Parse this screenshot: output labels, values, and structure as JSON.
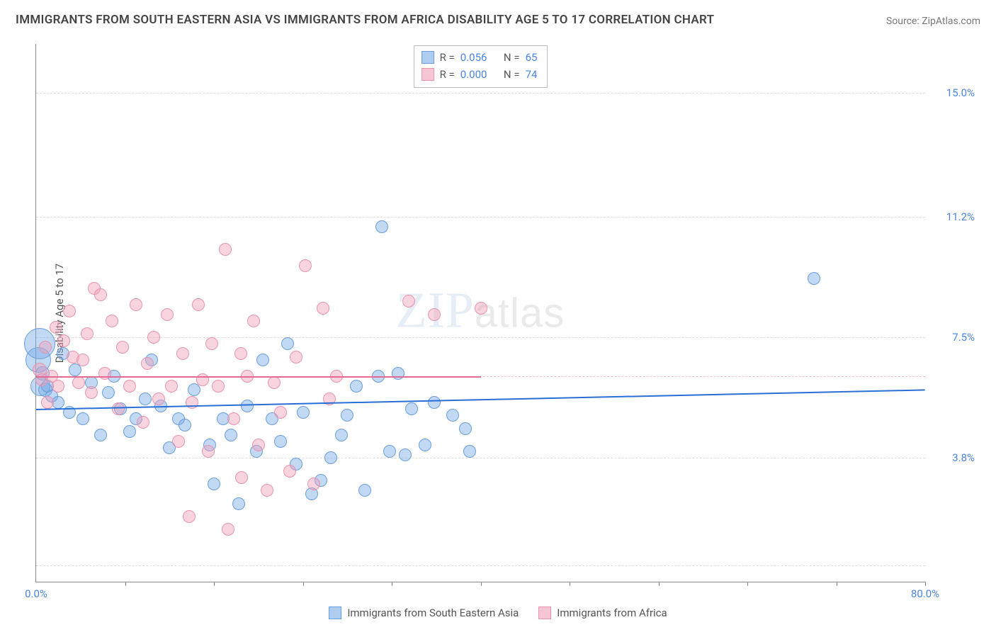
{
  "title": "IMMIGRANTS FROM SOUTH EASTERN ASIA VS IMMIGRANTS FROM AFRICA DISABILITY AGE 5 TO 17 CORRELATION CHART",
  "source": "Source: ZipAtlas.com",
  "ylabel": "Disability Age 5 to 17",
  "watermark": {
    "zip": "ZIP",
    "atlas": "atlas"
  },
  "chart": {
    "type": "scatter",
    "xlim": [
      0,
      80
    ],
    "ylim": [
      0,
      16.5
    ],
    "xtick_labels": [
      {
        "v": 0,
        "label": "0.0%"
      },
      {
        "v": 80,
        "label": "80.0%"
      }
    ],
    "xticks": [
      8,
      16,
      24,
      32,
      40,
      48,
      56,
      64,
      72,
      80
    ],
    "ytick_labels": [
      {
        "v": 3.8,
        "label": "3.8%"
      },
      {
        "v": 7.5,
        "label": "7.5%"
      },
      {
        "v": 11.2,
        "label": "11.2%"
      },
      {
        "v": 15.0,
        "label": "15.0%"
      }
    ],
    "gridlines_h": [
      0.5,
      3.8,
      7.5,
      11.2,
      15.0
    ],
    "dashed_pink_y": 6.3,
    "background_color": "#ffffff",
    "grid_color": "#dddddd",
    "colors": {
      "blue_fill": "rgba(120,170,230,0.45)",
      "blue_stroke": "#6a9edb",
      "pink_fill": "rgba(240,160,185,0.45)",
      "pink_stroke": "#e893b0",
      "axis_value": "#4a84e8"
    },
    "trend_lines": [
      {
        "color": "#2a6fd6",
        "x1": 0,
        "y1": 5.3,
        "x2": 80,
        "y2": 5.9,
        "width": 2
      },
      {
        "color": "#e36a94",
        "x1": 0,
        "y1": 6.3,
        "x2": 40,
        "y2": 6.3,
        "width": 2
      }
    ],
    "series": [
      {
        "name": "Immigrants from South Eastern Asia",
        "color": "blue",
        "points": [
          {
            "x": 0.2,
            "y": 6.8,
            "r": 18
          },
          {
            "x": 0.3,
            "y": 7.3,
            "r": 22
          },
          {
            "x": 0.4,
            "y": 6.0,
            "r": 14
          },
          {
            "x": 0.6,
            "y": 6.4,
            "r": 10
          },
          {
            "x": 0.8,
            "y": 5.9,
            "r": 10
          },
          {
            "x": 1.0,
            "y": 6.0,
            "r": 9
          },
          {
            "x": 1.4,
            "y": 5.7,
            "r": 9
          },
          {
            "x": 2.0,
            "y": 5.5,
            "r": 9
          },
          {
            "x": 2.4,
            "y": 7.0,
            "r": 9
          },
          {
            "x": 3.0,
            "y": 5.2,
            "r": 9
          },
          {
            "x": 3.5,
            "y": 6.5,
            "r": 9
          },
          {
            "x": 4.2,
            "y": 5.0,
            "r": 9
          },
          {
            "x": 5.0,
            "y": 6.1,
            "r": 9
          },
          {
            "x": 5.8,
            "y": 4.5,
            "r": 9
          },
          {
            "x": 6.5,
            "y": 5.8,
            "r": 9
          },
          {
            "x": 7.0,
            "y": 6.3,
            "r": 9
          },
          {
            "x": 7.6,
            "y": 5.3,
            "r": 9
          },
          {
            "x": 8.4,
            "y": 4.6,
            "r": 9
          },
          {
            "x": 9.0,
            "y": 5.0,
            "r": 9
          },
          {
            "x": 9.8,
            "y": 5.6,
            "r": 9
          },
          {
            "x": 10.4,
            "y": 6.8,
            "r": 9
          },
          {
            "x": 11.2,
            "y": 5.4,
            "r": 9
          },
          {
            "x": 12.0,
            "y": 4.1,
            "r": 9
          },
          {
            "x": 12.8,
            "y": 5.0,
            "r": 9
          },
          {
            "x": 13.4,
            "y": 4.8,
            "r": 9
          },
          {
            "x": 14.2,
            "y": 5.9,
            "r": 9
          },
          {
            "x": 15.6,
            "y": 4.2,
            "r": 9
          },
          {
            "x": 16.0,
            "y": 3.0,
            "r": 9
          },
          {
            "x": 16.8,
            "y": 5.0,
            "r": 9
          },
          {
            "x": 17.5,
            "y": 4.5,
            "r": 9
          },
          {
            "x": 18.2,
            "y": 2.4,
            "r": 9
          },
          {
            "x": 19.0,
            "y": 5.4,
            "r": 9
          },
          {
            "x": 19.8,
            "y": 4.0,
            "r": 9
          },
          {
            "x": 20.4,
            "y": 6.8,
            "r": 9
          },
          {
            "x": 21.2,
            "y": 5.0,
            "r": 9
          },
          {
            "x": 22.0,
            "y": 4.3,
            "r": 9
          },
          {
            "x": 22.6,
            "y": 7.3,
            "r": 9
          },
          {
            "x": 23.4,
            "y": 3.6,
            "r": 9
          },
          {
            "x": 24.0,
            "y": 5.2,
            "r": 9
          },
          {
            "x": 24.8,
            "y": 2.7,
            "r": 9
          },
          {
            "x": 25.6,
            "y": 3.1,
            "r": 9
          },
          {
            "x": 26.5,
            "y": 3.8,
            "r": 9
          },
          {
            "x": 27.5,
            "y": 4.5,
            "r": 9
          },
          {
            "x": 28.0,
            "y": 5.1,
            "r": 9
          },
          {
            "x": 28.8,
            "y": 6.0,
            "r": 9
          },
          {
            "x": 29.6,
            "y": 2.8,
            "r": 9
          },
          {
            "x": 30.8,
            "y": 6.3,
            "r": 9
          },
          {
            "x": 31.1,
            "y": 10.9,
            "r": 9
          },
          {
            "x": 31.8,
            "y": 4.0,
            "r": 9
          },
          {
            "x": 32.6,
            "y": 6.4,
            "r": 9
          },
          {
            "x": 33.2,
            "y": 3.9,
            "r": 9
          },
          {
            "x": 33.8,
            "y": 5.3,
            "r": 9
          },
          {
            "x": 35.0,
            "y": 4.2,
            "r": 9
          },
          {
            "x": 35.8,
            "y": 5.5,
            "r": 9
          },
          {
            "x": 37.5,
            "y": 5.1,
            "r": 9
          },
          {
            "x": 38.6,
            "y": 4.7,
            "r": 9
          },
          {
            "x": 39.0,
            "y": 4.0,
            "r": 9
          },
          {
            "x": 70.0,
            "y": 9.3,
            "r": 9
          }
        ]
      },
      {
        "name": "Immigrants from Africa",
        "color": "pink",
        "points": [
          {
            "x": 0.3,
            "y": 6.5,
            "r": 10
          },
          {
            "x": 0.5,
            "y": 6.2,
            "r": 9
          },
          {
            "x": 0.8,
            "y": 7.2,
            "r": 9
          },
          {
            "x": 1.0,
            "y": 5.5,
            "r": 9
          },
          {
            "x": 1.4,
            "y": 6.3,
            "r": 9
          },
          {
            "x": 1.8,
            "y": 7.8,
            "r": 9
          },
          {
            "x": 2.0,
            "y": 6.0,
            "r": 9
          },
          {
            "x": 2.5,
            "y": 7.4,
            "r": 9
          },
          {
            "x": 3.0,
            "y": 8.3,
            "r": 9
          },
          {
            "x": 3.3,
            "y": 6.9,
            "r": 9
          },
          {
            "x": 3.8,
            "y": 6.1,
            "r": 9
          },
          {
            "x": 4.2,
            "y": 6.8,
            "r": 9
          },
          {
            "x": 4.6,
            "y": 7.6,
            "r": 9
          },
          {
            "x": 5.0,
            "y": 5.8,
            "r": 9
          },
          {
            "x": 5.2,
            "y": 9.0,
            "r": 9
          },
          {
            "x": 5.8,
            "y": 8.8,
            "r": 9
          },
          {
            "x": 6.2,
            "y": 6.4,
            "r": 9
          },
          {
            "x": 6.8,
            "y": 8.0,
            "r": 9
          },
          {
            "x": 7.4,
            "y": 5.3,
            "r": 9
          },
          {
            "x": 7.8,
            "y": 7.2,
            "r": 9
          },
          {
            "x": 8.4,
            "y": 6.0,
            "r": 9
          },
          {
            "x": 9.0,
            "y": 8.5,
            "r": 9
          },
          {
            "x": 9.6,
            "y": 4.9,
            "r": 9
          },
          {
            "x": 10.0,
            "y": 6.7,
            "r": 9
          },
          {
            "x": 10.6,
            "y": 7.5,
            "r": 9
          },
          {
            "x": 11.0,
            "y": 5.6,
            "r": 9
          },
          {
            "x": 11.8,
            "y": 8.2,
            "r": 9
          },
          {
            "x": 12.2,
            "y": 6.0,
            "r": 9
          },
          {
            "x": 12.8,
            "y": 4.3,
            "r": 9
          },
          {
            "x": 13.2,
            "y": 7.0,
            "r": 9
          },
          {
            "x": 13.8,
            "y": 2.0,
            "r": 9
          },
          {
            "x": 14.0,
            "y": 5.5,
            "r": 9
          },
          {
            "x": 14.6,
            "y": 8.5,
            "r": 9
          },
          {
            "x": 15.0,
            "y": 6.2,
            "r": 9
          },
          {
            "x": 15.5,
            "y": 4.0,
            "r": 9
          },
          {
            "x": 15.8,
            "y": 7.3,
            "r": 9
          },
          {
            "x": 16.4,
            "y": 6.0,
            "r": 9
          },
          {
            "x": 17.0,
            "y": 10.2,
            "r": 9
          },
          {
            "x": 17.3,
            "y": 1.6,
            "r": 9
          },
          {
            "x": 17.8,
            "y": 5.0,
            "r": 9
          },
          {
            "x": 18.4,
            "y": 7.0,
            "r": 9
          },
          {
            "x": 18.5,
            "y": 3.2,
            "r": 9
          },
          {
            "x": 19.0,
            "y": 6.3,
            "r": 9
          },
          {
            "x": 19.6,
            "y": 8.0,
            "r": 9
          },
          {
            "x": 20.0,
            "y": 4.2,
            "r": 9
          },
          {
            "x": 20.8,
            "y": 2.8,
            "r": 9
          },
          {
            "x": 21.4,
            "y": 6.1,
            "r": 9
          },
          {
            "x": 22.0,
            "y": 5.2,
            "r": 9
          },
          {
            "x": 22.8,
            "y": 3.4,
            "r": 9
          },
          {
            "x": 23.4,
            "y": 6.9,
            "r": 9
          },
          {
            "x": 24.2,
            "y": 9.7,
            "r": 9
          },
          {
            "x": 25.0,
            "y": 3.0,
            "r": 9
          },
          {
            "x": 25.8,
            "y": 8.4,
            "r": 9
          },
          {
            "x": 26.4,
            "y": 5.6,
            "r": 9
          },
          {
            "x": 27.0,
            "y": 6.3,
            "r": 9
          },
          {
            "x": 33.5,
            "y": 8.6,
            "r": 9
          },
          {
            "x": 35.8,
            "y": 8.2,
            "r": 9
          },
          {
            "x": 40.0,
            "y": 8.4,
            "r": 9
          }
        ]
      }
    ]
  },
  "stats_box": {
    "rows": [
      {
        "swatch": "blue",
        "r_label": "R =",
        "r_value": "0.056",
        "n_label": "N =",
        "n_value": "65"
      },
      {
        "swatch": "pink",
        "r_label": "R =",
        "r_value": "0.000",
        "n_label": "N =",
        "n_value": "74"
      }
    ]
  },
  "bottom_legend": [
    {
      "swatch": "blue",
      "label": "Immigrants from South Eastern Asia"
    },
    {
      "swatch": "pink",
      "label": "Immigrants from Africa"
    }
  ]
}
